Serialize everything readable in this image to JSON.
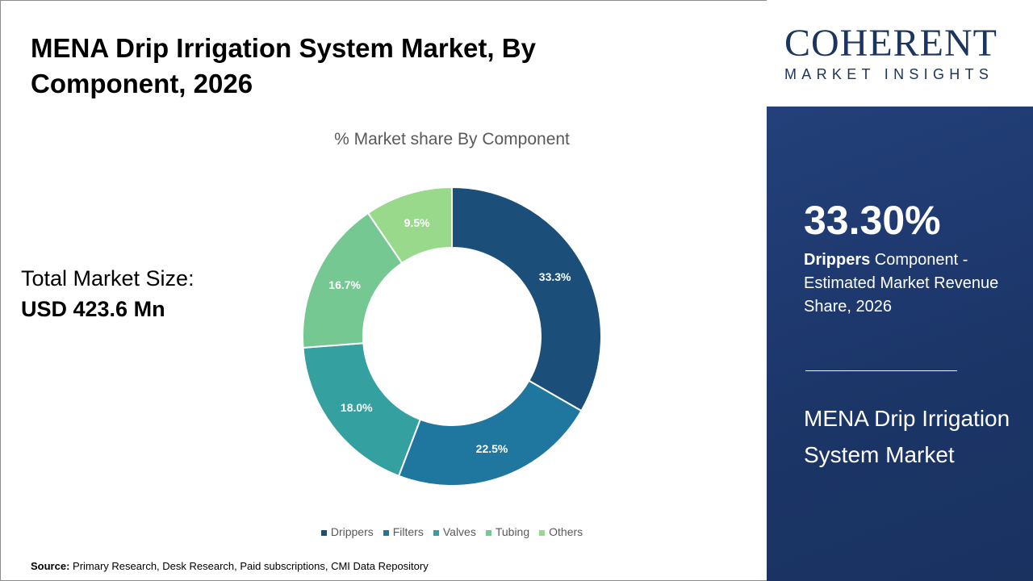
{
  "title": "MENA Drip Irrigation System Market, By Component, 2026",
  "total": {
    "label": "Total Market Size:",
    "value": "USD 423.6 Mn"
  },
  "source": {
    "label": "Source:",
    "text": " Primary Research, Desk Research, Paid subscriptions, CMI Data Repository"
  },
  "logo": {
    "big": "COHERENT",
    "small": "MARKET INSIGHTS"
  },
  "panel": {
    "pct": "33.30%",
    "bold": "Drippers",
    "desc": " Component - Estimated Market Revenue Share, 2026",
    "market": "MENA Drip Irrigation System Market"
  },
  "chart_data": {
    "type": "pie",
    "donut": true,
    "title": "% Market share By Component",
    "categories": [
      "Drippers",
      "Filters",
      "Valves",
      "Tubing",
      "Others"
    ],
    "values": [
      33.3,
      22.5,
      18.0,
      16.7,
      9.5
    ],
    "labels": [
      "33.3%",
      "22.5%",
      "18.0%",
      "16.7%",
      "9.5%"
    ],
    "colors": [
      "#1b4f7a",
      "#1f77a0",
      "#35a0a0",
      "#76c893",
      "#99d98c"
    ],
    "legend": "bottom"
  }
}
